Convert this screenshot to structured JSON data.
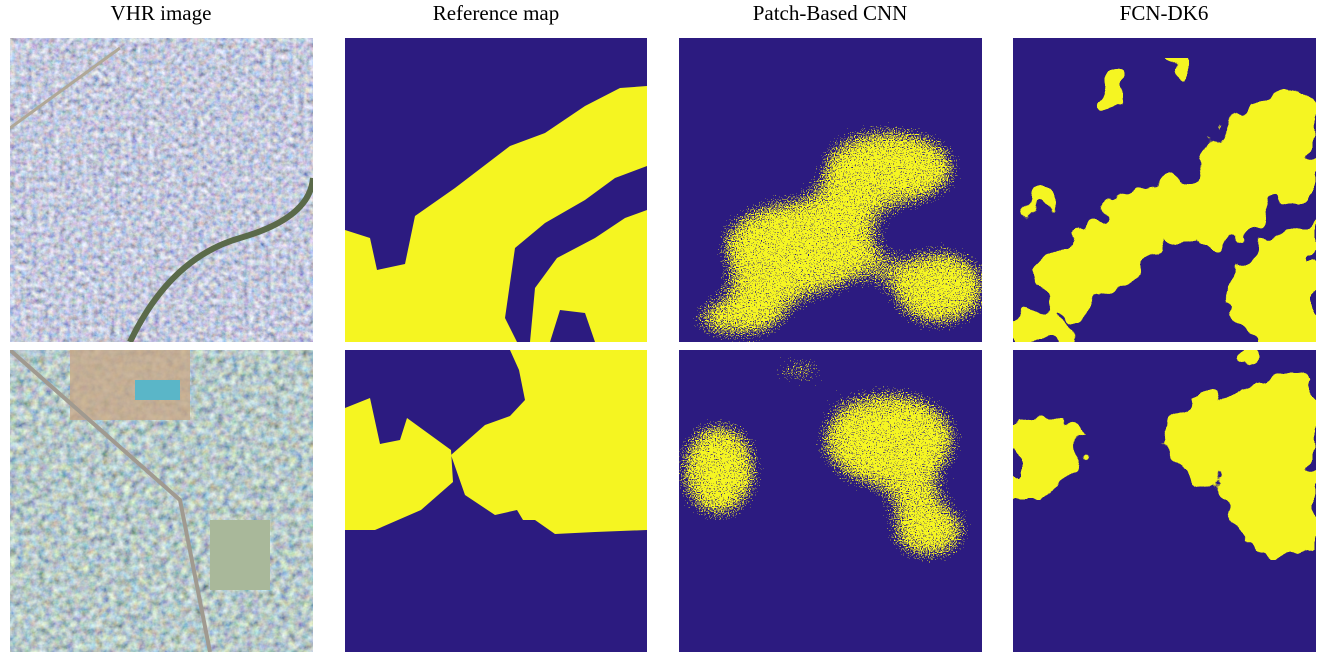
{
  "column_titles": [
    "VHR image",
    "Reference map",
    "Patch-Based CNN",
    "FCN-DK6"
  ]
}
